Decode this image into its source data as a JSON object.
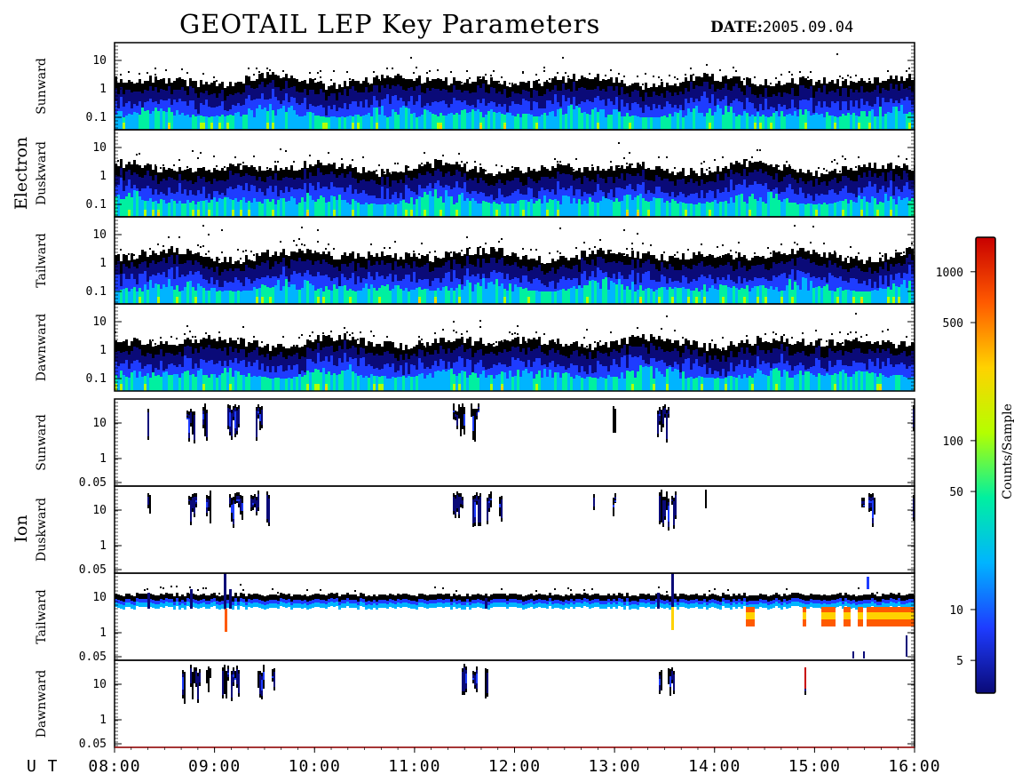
{
  "title": "GEOTAIL LEP Key Parameters",
  "date_label": "DATE:",
  "date_value": "2005.09.04",
  "chart_data": {
    "type": "heatmap",
    "title": "GEOTAIL LEP Key Parameters",
    "date": "2005.09.04",
    "x_axis": {
      "label": "U T",
      "range": [
        "08:00",
        "16:00"
      ],
      "ticks": [
        "08:00",
        "09:00",
        "10:00",
        "11:00",
        "12:00",
        "13:00",
        "14:00",
        "15:00",
        "16:00"
      ]
    },
    "groups": [
      {
        "name": "Electron",
        "panels": [
          {
            "name": "Sunward",
            "y_ticks": [
              "10",
              "1",
              "0.1"
            ],
            "log_scale": true
          },
          {
            "name": "Duskward",
            "y_ticks": [
              "10",
              "1",
              "0.1"
            ],
            "log_scale": true
          },
          {
            "name": "Tailward",
            "y_ticks": [
              "10",
              "1",
              "0.1"
            ],
            "log_scale": true
          },
          {
            "name": "Dawnward",
            "y_ticks": [
              "10",
              "1",
              "0.1"
            ],
            "log_scale": true
          }
        ]
      },
      {
        "name": "Ion",
        "panels": [
          {
            "name": "Sunward",
            "y_ticks": [
              "10",
              "1",
              "0.05"
            ],
            "log_scale": true
          },
          {
            "name": "Duskward",
            "y_ticks": [
              "10",
              "1",
              "0.05"
            ],
            "log_scale": true
          },
          {
            "name": "Tailward",
            "y_ticks": [
              "10",
              "1",
              "0.05"
            ],
            "log_scale": true
          },
          {
            "name": "Dawnward",
            "y_ticks": [
              "10",
              "1",
              "0.05"
            ],
            "log_scale": true
          }
        ]
      }
    ],
    "colorbar": {
      "label": "Counts/Sample",
      "ticks": [
        "1000",
        "500",
        "100",
        "50",
        "10",
        "5"
      ],
      "log_scale": true,
      "colors": [
        "#000000",
        "#0a0a78",
        "#1e3cff",
        "#00b4ff",
        "#00f0a0",
        "#b4ff00",
        "#ffd200",
        "#ff5a00",
        "#c80000"
      ]
    }
  }
}
